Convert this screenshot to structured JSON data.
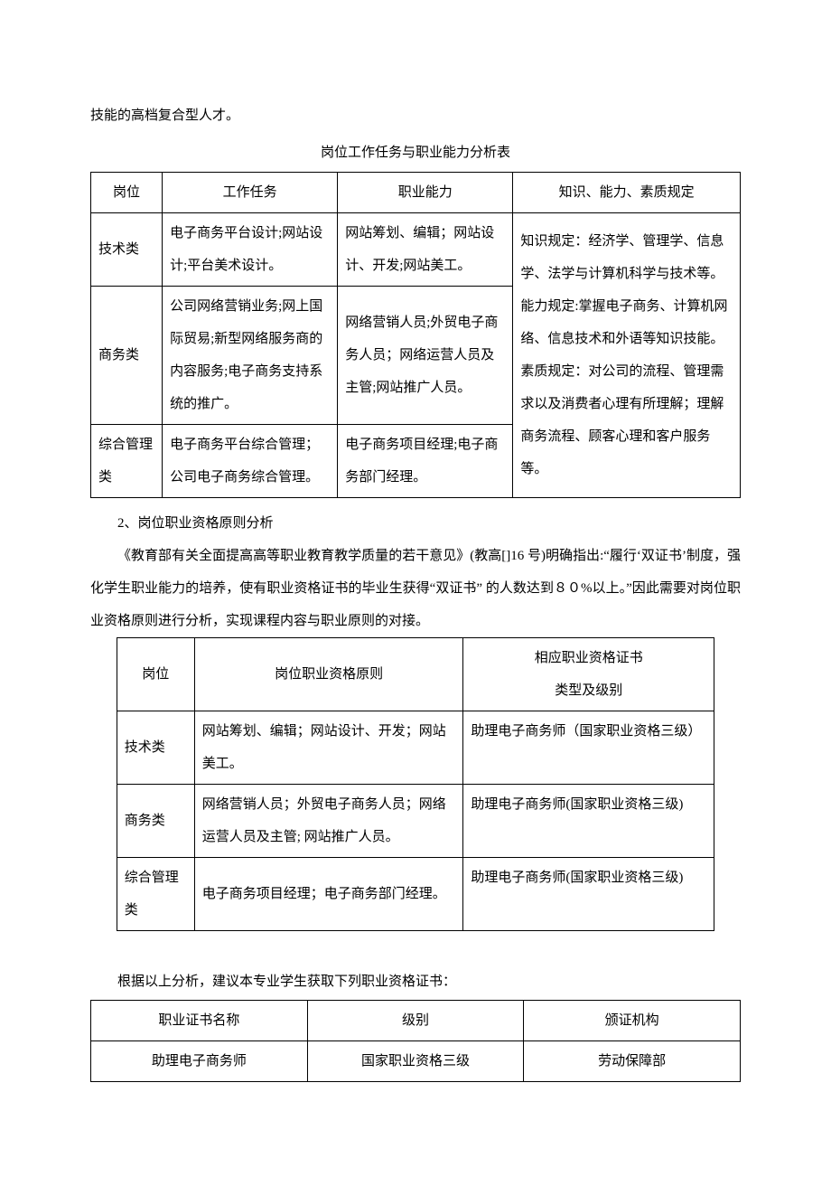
{
  "intro": "技能的高档复合型人才。",
  "tableA": {
    "caption": "岗位工作任务与职业能力分析表",
    "headers": {
      "position": "岗位",
      "task": "工作任务",
      "ability": "职业能力",
      "knowledge": "知识、能力、素质规定"
    },
    "rows": [
      {
        "position": "技术类",
        "task": "电子商务平台设计;网站设计;平台美术设计。",
        "ability": "网站筹划、编辑；网站设计、开发;网站美工。"
      },
      {
        "position": "商务类",
        "task": "公司网络营销业务;网上国际贸易;新型网络服务商的内容服务;电子商务支持系统的推广。",
        "ability": "网络营销人员;外贸电子商务人员；网络运营人员及主管;网站推广人员。"
      },
      {
        "position": "综合管理类",
        "task": "电子商务平台综合管理；公司电子商务综合管理。",
        "ability": "电子商务项目经理;电子商务部门经理。"
      }
    ],
    "knowledge_merged": "知识规定：经济学、管理学、信息学、法学与计算机科学与技术等。\n能力规定:掌握电子商务、计算机网络、信息技术和外语等知识技能。\n素质规定：对公司的流程、管理需求以及消费者心理有所理解；理解商务流程、顾客心理和客户服务等。"
  },
  "section2": {
    "heading": "2、岗位职业资格原则分析",
    "paragraph": "《教育部有关全面提高高等职业教育教学质量的若干意见》(教高[]16 号)明确指出:“履行‘双证书’制度，强化学生职业能力的培养，使有职业资格证书的毕业生获得“双证书”  的人数达到８０%以上。”因此需要对岗位职业资格原则进行分析，实现课程内容与职业原则的对接。"
  },
  "tableB": {
    "headers": {
      "position": "岗位",
      "principle": "岗位职业资格原则",
      "cert": "相应职业资格证书\n类型及级别"
    },
    "rows": [
      {
        "position": "技术类",
        "principle": "网站筹划、编辑；网站设计、开发；网站美工。",
        "cert": "助理电子商务师（国家职业资格三级）"
      },
      {
        "position": "商务类",
        "principle": "网络营销人员；外贸电子商务人员；网络运营人员及主管; 网站推广人员。",
        "cert": "助理电子商务师(国家职业资格三级)"
      },
      {
        "position": "综合管理类",
        "principle": "电子商务项目经理；电子商务部门经理。",
        "cert": "助理电子商务师(国家职业资格三级)"
      }
    ]
  },
  "conclusion": "根据以上分析，建议本专业学生获取下列职业资格证书：",
  "tableC": {
    "headers": {
      "name": "职业证书名称",
      "level": "级别",
      "authority": "颁证机构"
    },
    "rows": [
      {
        "name": "助理电子商务师",
        "level": "国家职业资格三级",
        "authority": "劳动保障部"
      }
    ]
  }
}
